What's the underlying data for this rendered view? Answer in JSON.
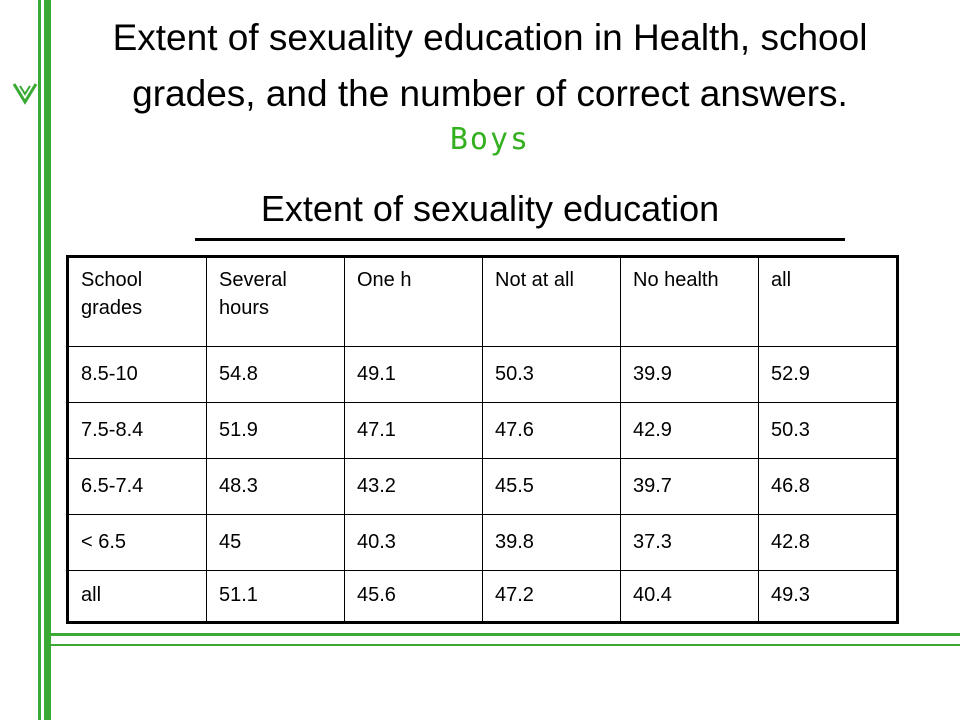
{
  "header": {
    "title_line1": "Extent of sexuality education in Health, school",
    "title_line2": "grades, and the number of correct answers.",
    "subtitle": "Boys"
  },
  "table": {
    "caption": "Extent of sexuality education",
    "columns": [
      "School grades",
      "Several hours",
      "One h",
      "Not at all",
      "No health",
      "all"
    ],
    "rows": [
      [
        "8.5-10",
        "54.8",
        "49.1",
        "50.3",
        "39.9",
        "52.9"
      ],
      [
        "7.5-8.4",
        "51.9",
        "47.1",
        "47.6",
        "42.9",
        "50.3"
      ],
      [
        "6.5-7.4",
        "48.3",
        "43.2",
        "45.5",
        "39.7",
        "46.8"
      ],
      [
        "< 6.5",
        "45",
        "40.3",
        "39.8",
        "37.3",
        "42.8"
      ],
      [
        "all",
        "51.1",
        "45.6",
        "47.2",
        "40.4",
        "49.3"
      ]
    ]
  }
}
